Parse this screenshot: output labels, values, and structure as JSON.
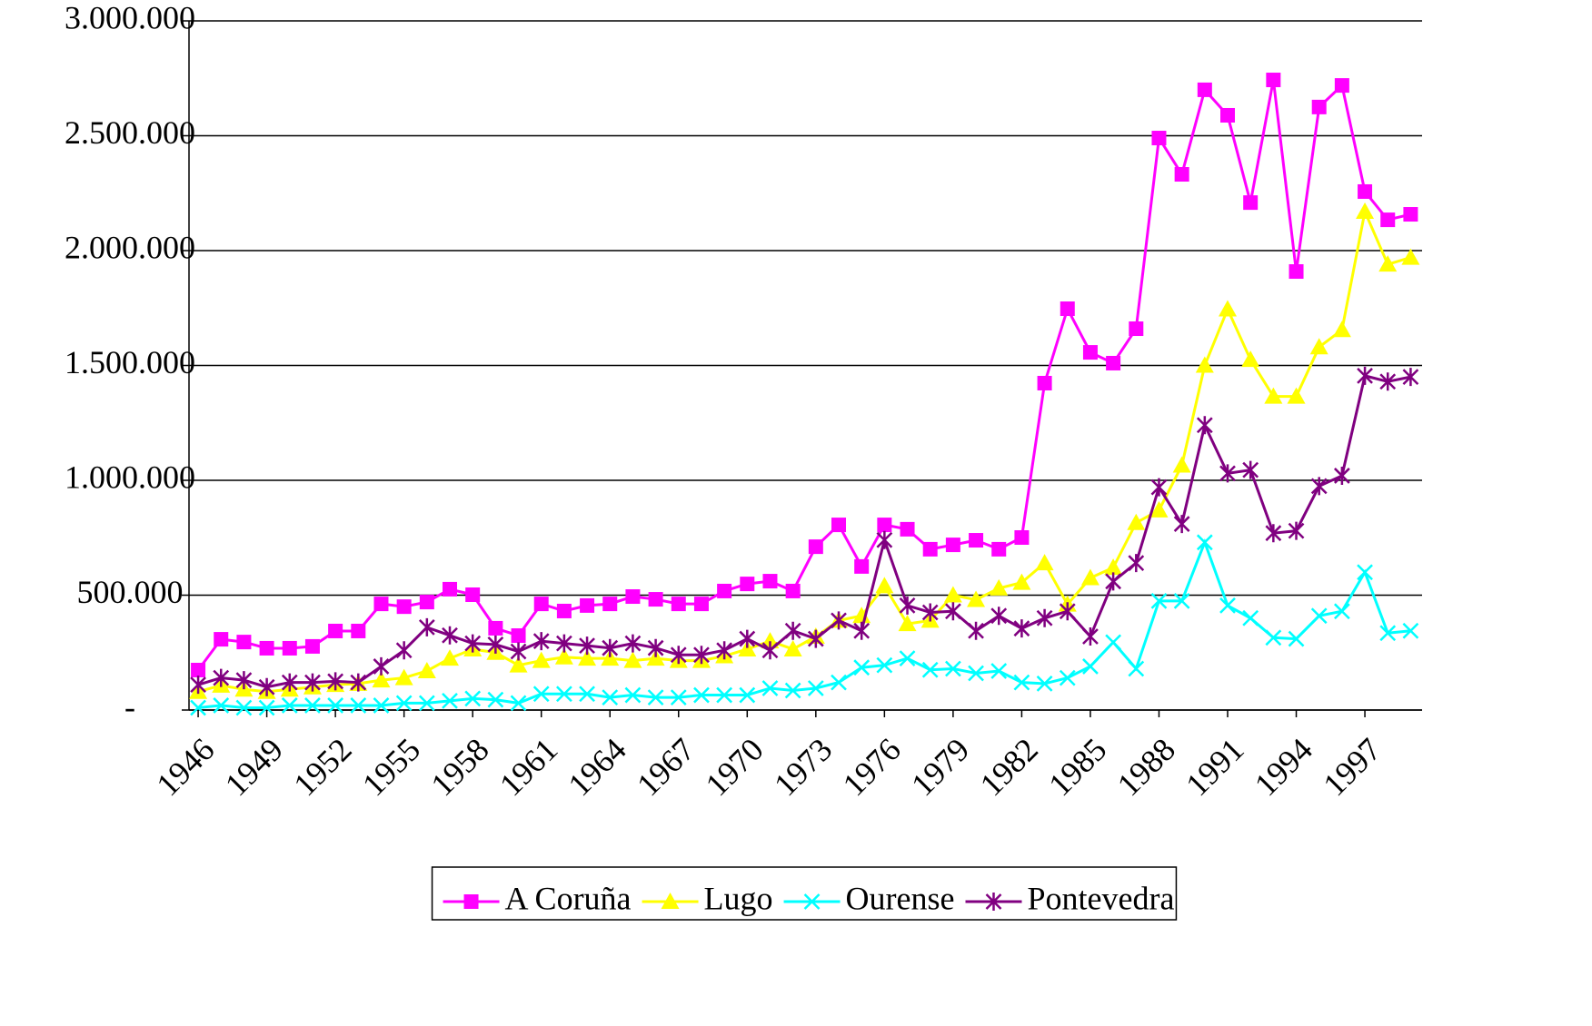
{
  "chart_data": {
    "type": "line",
    "x": [
      1946,
      1947,
      1948,
      1949,
      1950,
      1951,
      1952,
      1953,
      1954,
      1955,
      1956,
      1957,
      1958,
      1959,
      1960,
      1961,
      1962,
      1963,
      1964,
      1965,
      1966,
      1967,
      1968,
      1969,
      1970,
      1971,
      1972,
      1973,
      1974,
      1975,
      1976,
      1977,
      1978,
      1979,
      1980,
      1981,
      1982,
      1983,
      1984,
      1985,
      1986,
      1987,
      1988,
      1989,
      1990,
      1991,
      1992,
      1993,
      1994,
      1995,
      1996,
      1997,
      1998,
      1999
    ],
    "xlim": [
      1945.6,
      1999.5
    ],
    "xticks": [
      1946,
      1949,
      1952,
      1955,
      1958,
      1961,
      1964,
      1967,
      1970,
      1973,
      1976,
      1979,
      1982,
      1985,
      1988,
      1991,
      1994,
      1997
    ],
    "ylim": [
      0,
      3000000
    ],
    "yticks": [
      {
        "value": 0,
        "label": "-"
      },
      {
        "value": 500000,
        "label": "500.000"
      },
      {
        "value": 1000000,
        "label": "1.000.000"
      },
      {
        "value": 1500000,
        "label": "1.500.000"
      },
      {
        "value": 2000000,
        "label": "2.000.000"
      },
      {
        "value": 2500000,
        "label": "2.500.000"
      },
      {
        "value": 3000000,
        "label": "3.000.000"
      }
    ],
    "grid": true,
    "legend": "bottom",
    "series": [
      {
        "name": "A Coruña",
        "color": "#ff00ff",
        "marker": "square",
        "values": [
          174000,
          308000,
          296000,
          269000,
          269000,
          277000,
          344000,
          344000,
          462000,
          450000,
          470000,
          526000,
          502000,
          356000,
          324000,
          462000,
          431000,
          455000,
          462000,
          494000,
          482000,
          462000,
          462000,
          518000,
          549000,
          561000,
          518000,
          711000,
          806000,
          625000,
          806000,
          787000,
          700000,
          719000,
          739000,
          700000,
          751000,
          1423000,
          1747000,
          1557000,
          1510000,
          1660000,
          2490000,
          2332000,
          2700000,
          2589000,
          2209000,
          2743000,
          1909000,
          2625000,
          2719000,
          2257000,
          2134000,
          2158000
        ]
      },
      {
        "name": "Lugo",
        "color": "#ffff00",
        "marker": "triangle",
        "values": [
          80000,
          107000,
          90000,
          80000,
          90000,
          100000,
          110000,
          115000,
          130000,
          140000,
          170000,
          225000,
          265000,
          250000,
          195000,
          215000,
          230000,
          225000,
          225000,
          215000,
          225000,
          215000,
          215000,
          235000,
          265000,
          300000,
          265000,
          320000,
          390000,
          410000,
          540000,
          375000,
          390000,
          500000,
          480000,
          530000,
          555000,
          640000,
          460000,
          575000,
          620000,
          815000,
          870000,
          1065000,
          1500000,
          1745000,
          1525000,
          1365000,
          1365000,
          1580000,
          1655000,
          2170000,
          1940000,
          1970000
        ]
      },
      {
        "name": "Ourense",
        "color": "#00ffff",
        "marker": "x",
        "values": [
          10000,
          20000,
          10000,
          10000,
          20000,
          20000,
          20000,
          20000,
          20000,
          30000,
          30000,
          40000,
          50000,
          45000,
          30000,
          70000,
          70000,
          70000,
          55000,
          65000,
          55000,
          55000,
          65000,
          65000,
          65000,
          95000,
          85000,
          95000,
          120000,
          185000,
          195000,
          225000,
          175000,
          180000,
          160000,
          170000,
          120000,
          115000,
          140000,
          190000,
          295000,
          180000,
          475000,
          475000,
          730000,
          455000,
          400000,
          315000,
          310000,
          410000,
          430000,
          600000,
          335000,
          345000
        ]
      },
      {
        "name": "Pontevedra",
        "color": "#800080",
        "marker": "star",
        "values": [
          110000,
          140000,
          130000,
          100000,
          120000,
          120000,
          125000,
          120000,
          190000,
          260000,
          360000,
          325000,
          290000,
          285000,
          255000,
          300000,
          290000,
          280000,
          270000,
          290000,
          270000,
          240000,
          240000,
          260000,
          310000,
          260000,
          345000,
          310000,
          390000,
          345000,
          740000,
          455000,
          425000,
          430000,
          345000,
          410000,
          355000,
          400000,
          430000,
          320000,
          560000,
          640000,
          970000,
          810000,
          1240000,
          1030000,
          1045000,
          770000,
          780000,
          975000,
          1020000,
          1455000,
          1430000,
          1450000
        ]
      }
    ]
  }
}
